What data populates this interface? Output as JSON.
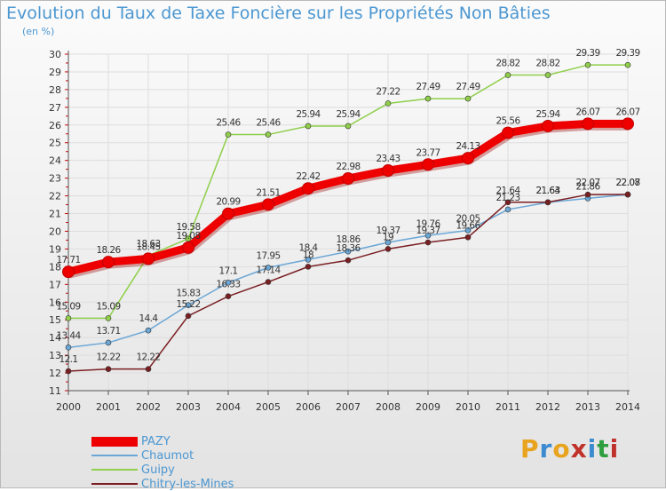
{
  "chart": {
    "title": "Evolution du Taux de Taxe Foncière sur les Propriétés Non Bâties",
    "subtitle": "(en %)"
  },
  "logo": {
    "text": "Proxiti",
    "colors": [
      "#e8a31f",
      "#3c8bd1",
      "#e8a31f",
      "#c0312b",
      "#3c8bd1",
      "#2f9e3f",
      "#c0312b"
    ]
  },
  "colors": {
    "title": "#4c97d1",
    "grid": "#dddddd",
    "axis": "#555555",
    "tick_red": "#cc0000"
  },
  "chart_data": {
    "type": "line",
    "x": [
      "2000",
      "2001",
      "2002",
      "2003",
      "2004",
      "2005",
      "2006",
      "2007",
      "2008",
      "2009",
      "2010",
      "2011",
      "2012",
      "2013",
      "2014"
    ],
    "ylim": [
      11,
      30
    ],
    "yticks": [
      "11",
      "12",
      "13",
      "14",
      "15",
      "16",
      "17",
      "18",
      "19",
      "20",
      "21",
      "22",
      "23",
      "24",
      "25",
      "26",
      "27",
      "28",
      "29",
      "30"
    ],
    "grid": true,
    "legend_position": "bottom-left",
    "series": [
      {
        "name": "PAZY",
        "color": "#ee0000",
        "values": [
          17.71,
          18.26,
          18.45,
          19.08,
          20.99,
          21.51,
          22.42,
          22.98,
          23.43,
          23.77,
          24.13,
          25.56,
          25.94,
          26.07,
          26.07
        ],
        "labels": [
          "17.71",
          "18.26",
          "18.45",
          "19.08",
          "20.99",
          "21.51",
          "22.42",
          "22.98",
          "23.43",
          "23.77",
          "24.13",
          "25.56",
          "25.94",
          "26.07",
          "26.07"
        ]
      },
      {
        "name": "Chaumot",
        "color": "#6aa6d6",
        "values": [
          13.44,
          13.71,
          14.4,
          15.83,
          17.1,
          17.95,
          18.4,
          18.86,
          19.37,
          19.76,
          20.05,
          21.23,
          21.63,
          21.86,
          22.07
        ],
        "labels": [
          "13.44",
          "13.71",
          "14.4",
          "15.83",
          "17.1",
          "17.95",
          "18.4",
          "18.86",
          "19.37",
          "19.76",
          "20.05",
          "21.23",
          "21.63",
          "21.86",
          "22.07"
        ]
      },
      {
        "name": "Guipy",
        "color": "#8fcf4a",
        "values": [
          15.09,
          15.09,
          18.63,
          19.58,
          25.46,
          25.46,
          25.94,
          25.94,
          27.22,
          27.49,
          27.49,
          28.82,
          28.82,
          29.39,
          29.39
        ],
        "labels": [
          "15.09",
          "15.09",
          "18.63",
          "19.58",
          "25.46",
          "25.46",
          "25.94",
          "25.94",
          "27.22",
          "27.49",
          "27.49",
          "28.82",
          "28.82",
          "29.39",
          "29.39"
        ]
      },
      {
        "name": "Chitry-les-Mines",
        "color": "#7a1e22",
        "values": [
          12.1,
          12.22,
          12.22,
          15.22,
          16.33,
          17.14,
          18,
          18.36,
          19,
          19.37,
          19.66,
          21.64,
          21.64,
          22.07,
          22.08
        ],
        "labels": [
          "12.1",
          "12.22",
          "12.22",
          "15.22",
          "16.33",
          "17.14",
          "18",
          "18.36",
          "19",
          "19.37",
          "19.66",
          "21.64",
          "21.64",
          "22.07",
          "22.08"
        ]
      }
    ]
  }
}
